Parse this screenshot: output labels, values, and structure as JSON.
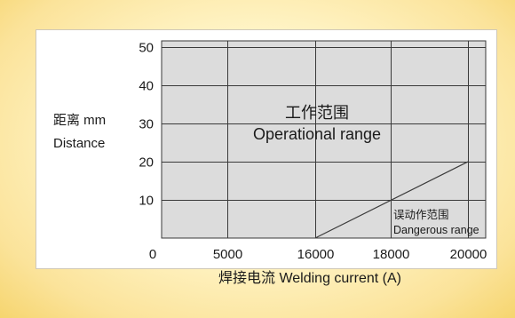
{
  "chart_data": {
    "type": "line",
    "title": "",
    "xlabel": "焊接电流 Welding current (A)",
    "ylabel_cn": "距离 mm",
    "ylabel_en": "Distance",
    "x_ticks": [
      0,
      5000,
      16000,
      18000,
      20000
    ],
    "y_ticks": [
      10,
      20,
      30,
      40,
      50
    ],
    "series": [
      {
        "x": [
          16000,
          20000
        ],
        "y": [
          0,
          20
        ]
      }
    ],
    "regions": {
      "operational": {
        "cn": "工作范围",
        "en": "Operational range"
      },
      "dangerous": {
        "cn": "误动作范围",
        "en": "Dangerous range"
      }
    },
    "grid": true,
    "colors": {
      "grid": "#3a3a3a",
      "plot_bg": "#dcdcdc",
      "line": "#3a3a3a"
    }
  }
}
